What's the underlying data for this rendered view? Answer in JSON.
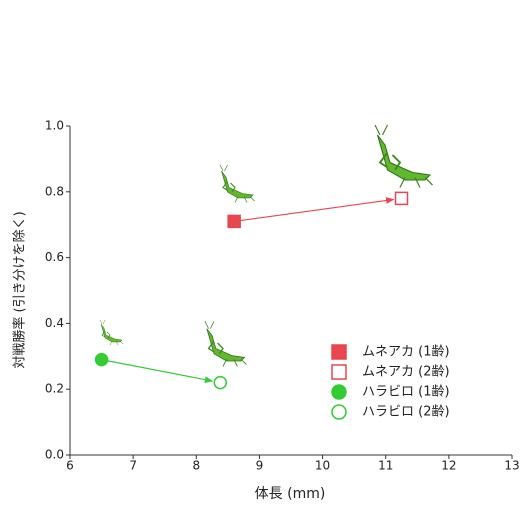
{
  "chart_data": {
    "type": "scatter",
    "xlabel": "体長 (mm)",
    "ylabel": "対戦勝率 (引き分けを除く)",
    "xlim": [
      6,
      13
    ],
    "xticks": [
      6,
      7,
      8,
      9,
      10,
      11,
      12,
      13
    ],
    "ylim": [
      0,
      1
    ],
    "yticks": [
      {
        "value": 0,
        "label": "0.0"
      },
      0.2,
      0.4,
      0.6,
      0.8,
      {
        "value": 1,
        "label": "1.0"
      }
    ],
    "legend": "lower right",
    "series": [
      {
        "name": "ムネアカ (1齢)",
        "color": "#e8474f",
        "marker": "square",
        "filled": true,
        "x": [
          8.6
        ],
        "values": [
          0.71
        ]
      },
      {
        "name": "ムネアカ (2齢)",
        "color": "#e8474f",
        "marker": "square",
        "filled": false,
        "x": [
          11.25
        ],
        "values": [
          0.78
        ]
      },
      {
        "name": "ハラビロ (1齢)",
        "color": "#33cc33",
        "marker": "circle",
        "filled": true,
        "x": [
          6.5
        ],
        "values": [
          0.29
        ]
      },
      {
        "name": "ハラビロ (2齢)",
        "color": "#33cc33",
        "marker": "circle",
        "filled": false,
        "x": [
          8.38
        ],
        "values": [
          0.22
        ]
      }
    ]
  }
}
